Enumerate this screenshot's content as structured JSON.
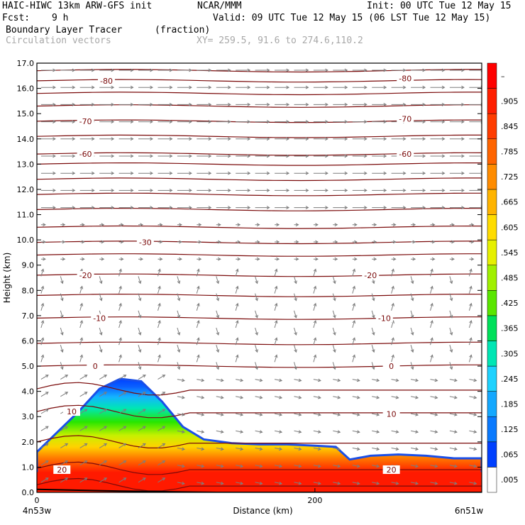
{
  "header": {
    "model": "HAIC-HIWC 13km ARW-GFS init",
    "org": "NCAR/MMM",
    "init": "Init: 00 UTC Tue 12 May 15",
    "fcst_label": "Fcst:",
    "fcst_value": "9 h",
    "valid": "Valid: 09 UTC Tue 12 May 15 (06 LST Tue 12 May 15)",
    "field_name": "Boundary Layer Tracer",
    "field_units": "(fraction)",
    "vectors": "Circulation vectors",
    "xy": "XY= 259.5, 91.6 to 274.6,110.2"
  },
  "colors": {
    "tracer_low": "#1a4fe8",
    "tracer_high": "#ff1a00",
    "contour": "#7a0a0a",
    "vector": "#7d7d7d"
  },
  "chart_data": {
    "type": "heatmap",
    "title": "Boundary Layer Tracer (fraction)",
    "xlabel": "Distance (km)",
    "ylabel": "Height (km)",
    "xlim": [
      0,
      320
    ],
    "ylim": [
      0,
      17
    ],
    "x_ticks": [
      0,
      200
    ],
    "x_end_labels": [
      "4n53w",
      "6n51w"
    ],
    "y_ticks": [
      "0.0",
      "1.0",
      "2.0",
      "3.0",
      "4.0",
      "5.0",
      "6.0",
      "7.0",
      "8.0",
      "9.0",
      "10.0",
      "11.0",
      "12.0",
      "13.0",
      "14.0",
      "15.0",
      "16.0",
      "17.0"
    ],
    "colorbar": {
      "labels": [
        ".005",
        ".065",
        ".125",
        ".185",
        ".245",
        ".305",
        ".365",
        ".425",
        ".485",
        ".545",
        ".605",
        ".665",
        ".725",
        ".785",
        ".845",
        ".905",
        "–"
      ],
      "colors": [
        "#ffffff",
        "#0040ff",
        "#0a7aff",
        "#14a8ff",
        "#1ed2ff",
        "#00e6b4",
        "#00e05a",
        "#5ae600",
        "#a0f000",
        "#e6f000",
        "#ffdc00",
        "#ffb400",
        "#ff8c00",
        "#ff6400",
        "#ff3c00",
        "#ff1e00",
        "#ff0000"
      ]
    },
    "tracer_top_km": [
      [
        0,
        1.6
      ],
      [
        15,
        2.4
      ],
      [
        30,
        3.2
      ],
      [
        45,
        4.1
      ],
      [
        60,
        4.5
      ],
      [
        75,
        4.4
      ],
      [
        90,
        3.6
      ],
      [
        105,
        2.6
      ],
      [
        120,
        2.1
      ],
      [
        140,
        1.95
      ],
      [
        160,
        1.9
      ],
      [
        180,
        1.9
      ],
      [
        200,
        1.85
      ],
      [
        215,
        1.8
      ],
      [
        225,
        1.3
      ],
      [
        240,
        1.45
      ],
      [
        260,
        1.5
      ],
      [
        280,
        1.45
      ],
      [
        300,
        1.35
      ],
      [
        320,
        1.35
      ]
    ],
    "temperature_labels": [
      {
        "value": "-80",
        "x": 50,
        "y": 16.3
      },
      {
        "value": "-80",
        "x": 265,
        "y": 16.4
      },
      {
        "value": "-70",
        "x": 35,
        "y": 14.7
      },
      {
        "value": "-70",
        "x": 265,
        "y": 14.8
      },
      {
        "value": "-60",
        "x": 35,
        "y": 13.4
      },
      {
        "value": "-60",
        "x": 265,
        "y": 13.4
      },
      {
        "value": "-30",
        "x": 78,
        "y": 9.9
      },
      {
        "value": "-20",
        "x": 35,
        "y": 8.6
      },
      {
        "value": "-20",
        "x": 240,
        "y": 8.6
      },
      {
        "value": "-10",
        "x": 45,
        "y": 6.9
      },
      {
        "value": "-10",
        "x": 250,
        "y": 6.9
      },
      {
        "value": "0",
        "x": 42,
        "y": 5.0
      },
      {
        "value": "0",
        "x": 255,
        "y": 5.0
      },
      {
        "value": "10",
        "x": 25,
        "y": 3.2
      },
      {
        "value": "10",
        "x": 255,
        "y": 3.1
      },
      {
        "value": "20",
        "x": 18,
        "y": 0.9
      },
      {
        "value": "20",
        "x": 255,
        "y": 0.9
      }
    ],
    "contour_heights_km": [
      0.3,
      0.95,
      2.0,
      3.2,
      4.1,
      5.0,
      5.9,
      6.9,
      7.8,
      8.6,
      9.4,
      9.9,
      10.5,
      11.2,
      11.8,
      12.4,
      13.0,
      13.4,
      14.1,
      14.7,
      15.3,
      15.8,
      16.3,
      16.7
    ]
  }
}
